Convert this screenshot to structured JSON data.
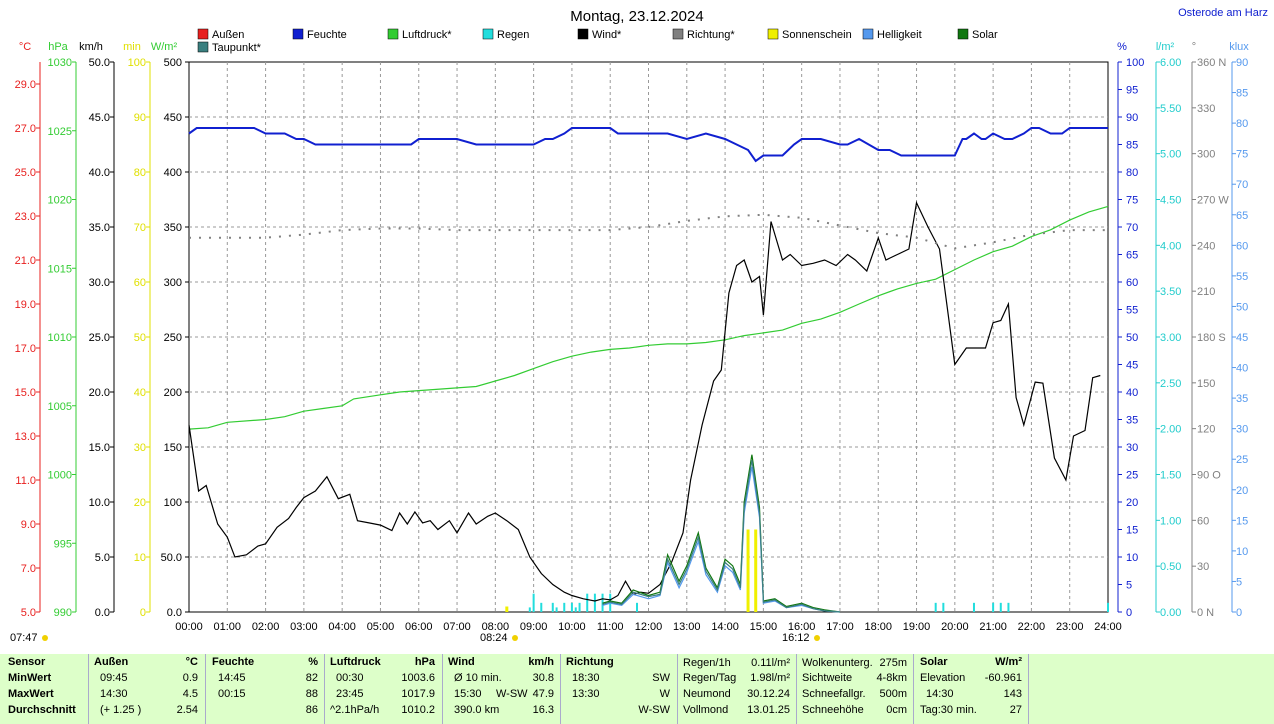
{
  "title": "Montag, 23.12.2024",
  "location": "Osterode am Harz",
  "left_units": [
    "°C",
    "hPa",
    "km/h",
    "min",
    "W/m²"
  ],
  "right_units": [
    "%",
    "l/m²",
    "°",
    "klux"
  ],
  "legend": [
    {
      "label": "Außen",
      "color": "#e8201f"
    },
    {
      "label": "Taupunkt*",
      "color": "#3a7f7f"
    },
    {
      "label": "Feuchte",
      "color": "#1020d0"
    },
    {
      "label": "Luftdruck*",
      "color": "#33cc33"
    },
    {
      "label": "Regen",
      "color": "#22dddd"
    },
    {
      "label": "Wind*",
      "color": "#000000"
    },
    {
      "label": "Richtung*",
      "color": "#808080"
    },
    {
      "label": "Sonnenschein",
      "color": "#f0f000"
    },
    {
      "label": "Helligkeit",
      "color": "#5599ee"
    },
    {
      "label": "Solar",
      "color": "#117711"
    }
  ],
  "sun": {
    "rise": "07:47",
    "noon": "08:24",
    "set": "16:12"
  },
  "chart_data": {
    "type": "line",
    "x_ticks": [
      "00:00",
      "01:00",
      "02:00",
      "03:00",
      "04:00",
      "05:00",
      "06:00",
      "07:00",
      "08:00",
      "09:00",
      "10:00",
      "11:00",
      "12:00",
      "13:00",
      "14:00",
      "15:00",
      "16:00",
      "17:00",
      "18:00",
      "19:00",
      "20:00",
      "21:00",
      "22:00",
      "23:00",
      "24:00"
    ],
    "axes": {
      "temp_c": {
        "ticks": [
          "5.0",
          "7.0",
          "9.0",
          "11.0",
          "13.0",
          "15.0",
          "17.0",
          "19.0",
          "21.0",
          "23.0",
          "25.0",
          "27.0",
          "29.0"
        ],
        "color": "#e8201f",
        "range": [
          5,
          30
        ]
      },
      "pressure_hpa": {
        "ticks": [
          "990",
          "995",
          "1000",
          "1005",
          "1010",
          "1015",
          "1020",
          "1025",
          "1030"
        ],
        "color": "#33cc33",
        "range": [
          990,
          1030
        ]
      },
      "wind_kmh": {
        "ticks": [
          "0.0",
          "5.0",
          "10.0",
          "15.0",
          "20.0",
          "25.0",
          "30.0",
          "35.0",
          "40.0",
          "45.0",
          "50.0"
        ],
        "color": "#000000",
        "range": [
          0,
          50
        ]
      },
      "sunshine_min": {
        "ticks": [
          "0",
          "10",
          "20",
          "30",
          "40",
          "50",
          "60",
          "70",
          "80",
          "90",
          "100"
        ],
        "color": "#e0e000",
        "range": [
          0,
          100
        ]
      },
      "solar_wm2": {
        "ticks": [
          "0.0",
          "50.0",
          "100",
          "150",
          "200",
          "250",
          "300",
          "350",
          "400",
          "450",
          "500"
        ],
        "color": "#000000",
        "range": [
          0,
          500
        ]
      },
      "humidity_pct": {
        "ticks": [
          "0",
          "5",
          "10",
          "15",
          "20",
          "25",
          "30",
          "35",
          "40",
          "45",
          "50",
          "55",
          "60",
          "65",
          "70",
          "75",
          "80",
          "85",
          "90",
          "95",
          "100"
        ],
        "color": "#1020d0",
        "range": [
          0,
          100
        ]
      },
      "rain_lm2": {
        "ticks": [
          "0.00",
          "0.50",
          "1.00",
          "1.50",
          "2.00",
          "2.50",
          "3.00",
          "3.50",
          "4.00",
          "4.50",
          "5.00",
          "5.50",
          "6.00"
        ],
        "color": "#22cccc",
        "range": [
          0,
          6
        ]
      },
      "direction_deg": {
        "ticks": [
          "0 N",
          "30",
          "60",
          "90 O",
          "120",
          "150",
          "180 S",
          "210",
          "240",
          "270 W",
          "300",
          "330",
          "360 N"
        ],
        "color": "#808080",
        "range": [
          0,
          360
        ]
      },
      "lux_klux": {
        "ticks": [
          "0",
          "5",
          "10",
          "15",
          "20",
          "25",
          "30",
          "35",
          "40",
          "45",
          "50",
          "55",
          "60",
          "65",
          "70",
          "75",
          "80",
          "85",
          "90"
        ],
        "color": "#5599ee",
        "range": [
          0,
          90
        ]
      }
    },
    "series": [
      {
        "name": "Feuchte",
        "axis": "humidity_pct",
        "color": "#1020d0",
        "x": [
          0,
          0.2,
          0.5,
          1,
          1.7,
          2,
          2.5,
          2.8,
          3,
          3.3,
          3.6,
          4,
          5,
          5.8,
          6,
          7,
          7.5,
          8,
          8.5,
          9,
          9.3,
          9.5,
          9.8,
          10,
          10.5,
          11,
          11.2,
          11.5,
          12,
          12.5,
          13,
          13.5,
          14,
          14.3,
          14.6,
          14.8,
          15,
          15.5,
          15.8,
          16,
          16.5,
          17,
          17.2,
          17.5,
          18,
          18.3,
          18.6,
          19,
          19.5,
          20,
          20.2,
          20.3,
          20.5,
          20.7,
          20.8,
          21,
          21.3,
          21.5,
          21.8,
          22,
          22.2,
          22.5,
          22.8,
          23,
          23.5,
          24
        ],
        "y": [
          87,
          88,
          88,
          88,
          88,
          87,
          87,
          86,
          86,
          85,
          85,
          85,
          85,
          85,
          86,
          86,
          85,
          85,
          85,
          85,
          86,
          86,
          87,
          88,
          88,
          88,
          87,
          87,
          87,
          87,
          86,
          87,
          86,
          85,
          84,
          82,
          83,
          83,
          85,
          86,
          86,
          85,
          85,
          86,
          84,
          84,
          83,
          83,
          83,
          83,
          86,
          86,
          87,
          86,
          86,
          87,
          86,
          86,
          87,
          88,
          88,
          87,
          87,
          88,
          88,
          88
        ]
      },
      {
        "name": "Luftdruck",
        "axis": "pressure_hpa",
        "color": "#33cc33",
        "x": [
          0,
          0.5,
          1,
          2,
          2.5,
          3,
          3.5,
          4,
          4.3,
          5,
          5.5,
          6,
          7,
          7.5,
          8,
          8.5,
          9,
          9.5,
          10,
          10.5,
          11,
          11.5,
          12,
          12.5,
          13,
          13.5,
          14,
          14.5,
          15,
          15.5,
          16,
          16.5,
          17,
          17.5,
          18,
          18.5,
          19,
          19.5,
          20,
          20.5,
          21,
          21.5,
          22,
          22.5,
          23,
          23.5,
          24
        ],
        "y": [
          1003.3,
          1003.4,
          1003.8,
          1004.0,
          1004.2,
          1004.6,
          1004.8,
          1005.0,
          1005.5,
          1005.8,
          1006.0,
          1006.1,
          1006.3,
          1006.4,
          1006.8,
          1007.2,
          1007.7,
          1008.2,
          1008.6,
          1008.9,
          1009.1,
          1009.2,
          1009.4,
          1009.5,
          1009.5,
          1009.6,
          1009.8,
          1010.1,
          1010.3,
          1010.5,
          1011.0,
          1011.3,
          1011.8,
          1012.4,
          1013.0,
          1013.5,
          1013.9,
          1014.2,
          1014.9,
          1015.6,
          1016.2,
          1016.6,
          1017.3,
          1017.8,
          1018.5,
          1019.1,
          1019.5
        ]
      },
      {
        "name": "Wind",
        "axis": "wind_kmh",
        "color": "#000000",
        "x": [
          0,
          0.25,
          0.45,
          0.75,
          1,
          1.2,
          1.5,
          1.8,
          2,
          2.3,
          2.6,
          2.8,
          3,
          3.3,
          3.6,
          3.9,
          4.2,
          4.4,
          4.7,
          5,
          5.3,
          5.5,
          5.7,
          5.9,
          6.1,
          6.3,
          6.5,
          6.8,
          7,
          7.3,
          7.5,
          7.8,
          8,
          8.3,
          8.6,
          8.9,
          9.2,
          9.5,
          9.8,
          10,
          10.3,
          10.6,
          10.8,
          11,
          11.2,
          11.4,
          11.6,
          11.8,
          12,
          12.3,
          12.6,
          12.9,
          13.1,
          13.4,
          13.7,
          13.9,
          14.1,
          14.3,
          14.5,
          14.7,
          14.9,
          15.0,
          15.2,
          15.5,
          15.7,
          16,
          16.3,
          16.6,
          16.9,
          17.2,
          17.4,
          17.7,
          18,
          18.2,
          18.5,
          18.8,
          19,
          19.3,
          19.6,
          20,
          20.3,
          20.5,
          20.8,
          21,
          21.2,
          21.4,
          21.6,
          21.8,
          22.1,
          22.3,
          22.6,
          22.9,
          23.1,
          23.4,
          23.6,
          23.8
        ],
        "y": [
          17,
          11,
          11.5,
          8,
          6.8,
          5,
          5.2,
          6,
          6.2,
          7.7,
          8.5,
          9.5,
          10.4,
          11,
          12.3,
          10.3,
          10.7,
          8.3,
          8.1,
          7.9,
          7.4,
          9,
          8,
          9.1,
          8.1,
          8.3,
          7.5,
          8.3,
          7.2,
          9,
          8,
          8.7,
          9,
          8.3,
          7.5,
          5,
          3.5,
          2.5,
          1.8,
          1.5,
          1.2,
          1.0,
          1.2,
          1.1,
          1.5,
          2.8,
          1.6,
          1.8,
          1.7,
          2.5,
          4.5,
          7.2,
          12,
          17,
          21,
          22,
          29,
          31.5,
          32,
          30,
          30.5,
          27,
          35.5,
          32,
          32.5,
          31.5,
          31.7,
          32,
          31.5,
          32.5,
          32,
          31,
          34,
          32,
          32.5,
          33,
          37.2,
          35,
          33,
          22.5,
          24,
          24,
          24,
          26.3,
          26.5,
          28,
          19.5,
          17,
          20.9,
          20.8,
          14,
          12,
          16,
          16.5,
          21.3,
          21.5
        ]
      },
      {
        "name": "Richtung",
        "axis": "direction_deg",
        "color": "#808080",
        "x": [
          0,
          1,
          2,
          3,
          4,
          5,
          6,
          7,
          8,
          11,
          12,
          13,
          14,
          15,
          16,
          17,
          18,
          19,
          20,
          21,
          22,
          23,
          24
        ],
        "y": [
          245,
          245,
          245,
          247,
          250,
          251,
          251,
          250,
          250,
          250,
          252,
          256,
          259,
          260,
          258,
          253,
          248,
          245,
          238,
          242,
          247,
          250,
          250
        ]
      },
      {
        "name": "Solar",
        "axis": "solar_wm2",
        "color": "#117711",
        "x": [
          10.8,
          11,
          11.3,
          11.6,
          12,
          12.3,
          12.5,
          12.8,
          13,
          13.3,
          13.5,
          13.8,
          14,
          14.2,
          14.4,
          14.5,
          14.7,
          14.9,
          15,
          15.3,
          15.6,
          16,
          16.3,
          16.6,
          17
        ],
        "y": [
          8,
          10,
          8,
          20,
          15,
          18,
          52,
          28,
          42,
          72,
          40,
          22,
          48,
          42,
          25,
          100,
          143,
          95,
          10,
          12,
          5,
          8,
          4,
          2,
          0
        ]
      },
      {
        "name": "Helligkeit",
        "axis": "solar_wm2",
        "color": "#5599ee",
        "x": [
          10.8,
          11,
          11.3,
          11.6,
          12,
          12.3,
          12.5,
          12.8,
          13,
          13.3,
          13.5,
          13.8,
          14,
          14.2,
          14.4,
          14.5,
          14.7,
          14.9,
          15,
          15.3,
          15.6,
          16,
          16.3,
          16.6,
          17
        ],
        "y": [
          6,
          8,
          6,
          16,
          12,
          15,
          45,
          22,
          36,
          64,
          34,
          18,
          42,
          36,
          20,
          90,
          132,
          86,
          8,
          10,
          4,
          6,
          3,
          1,
          0
        ]
      },
      {
        "name": "Taupunkt",
        "axis": "solar_wm2",
        "color": "#3a7f7f",
        "x": [
          10.8,
          11,
          11.3,
          11.6,
          12,
          12.3,
          12.5,
          12.8,
          13,
          13.3,
          13.5,
          13.8,
          14,
          14.2,
          14.4,
          14.5,
          14.7,
          14.9,
          15,
          15.3,
          15.6,
          16,
          16.3,
          16.6,
          17
        ],
        "y": [
          7,
          9,
          7,
          18,
          14,
          16,
          48,
          25,
          39,
          68,
          37,
          20,
          45,
          39,
          22,
          95,
          138,
          90,
          9,
          11,
          4,
          7,
          3,
          1,
          0
        ]
      }
    ],
    "bars": [
      {
        "name": "Regen",
        "axis": "rain_lm2",
        "color": "#22dddd",
        "x": [
          8.9,
          9.0,
          9.2,
          9.5,
          9.6,
          9.8,
          10,
          10.1,
          10.2,
          10.4,
          10.6,
          10.8,
          11.0,
          11.7,
          19.5,
          19.7,
          20.5,
          21.0,
          21.2,
          21.4,
          24.0
        ],
        "y": [
          0.05,
          0.2,
          0.1,
          0.1,
          0.05,
          0.1,
          0.1,
          0.05,
          0.1,
          0.2,
          0.2,
          0.2,
          0.2,
          0.1,
          0.1,
          0.1,
          0.1,
          0.1,
          0.1,
          0.1,
          0.1
        ]
      },
      {
        "name": "Sonnenschein",
        "axis": "sunshine_min",
        "color": "#f0f000",
        "x": [
          8.3,
          14.6,
          14.8
        ],
        "y": [
          1,
          15,
          15
        ]
      }
    ]
  },
  "stats": {
    "sensor": {
      "header": "Sensor",
      "rows": [
        "MinWert",
        "MaxWert",
        "Durchschnitt"
      ]
    },
    "aussen": {
      "header": "Außen",
      "unit": "°C",
      "rows": [
        [
          "09:45",
          "0.9"
        ],
        [
          "14:30",
          "4.5"
        ],
        [
          "(+ 1.25 )",
          "2.54"
        ]
      ]
    },
    "feuchte": {
      "header": "Feuchte",
      "unit": "%",
      "rows": [
        [
          "14:45",
          "82"
        ],
        [
          "00:15",
          "88"
        ],
        [
          "",
          "86"
        ]
      ]
    },
    "luftdruck": {
      "header": "Luftdruck",
      "unit": "hPa",
      "rows": [
        [
          "00:30",
          "1003.6"
        ],
        [
          "23:45",
          "1017.9"
        ],
        [
          "^2.1hPa/h",
          "1010.2"
        ]
      ]
    },
    "wind": {
      "header": "Wind",
      "unit": "km/h",
      "rows": [
        [
          "Ø 10 min.",
          "",
          "30.8"
        ],
        [
          "15:30",
          "W-SW",
          "47.9"
        ],
        [
          "390.0 km",
          "",
          "16.3"
        ]
      ]
    },
    "richtung": {
      "header": "Richtung",
      "rows": [
        [
          "18:30",
          "SW"
        ],
        [
          "13:30",
          "W"
        ],
        [
          "",
          "W-SW"
        ]
      ]
    },
    "regen": {
      "rows": [
        [
          "Regen/1h",
          "0.11l/m²"
        ],
        [
          "Regen/Tag",
          "1.98l/m²"
        ],
        [
          "Neumond",
          "30.12.24"
        ],
        [
          "Vollmond",
          "13.01.25"
        ]
      ]
    },
    "wolken": {
      "rows": [
        [
          "Wolkenunterg.",
          "275m"
        ],
        [
          "Sichtweite",
          "4-8km"
        ],
        [
          "Schneefallgr.",
          "500m"
        ],
        [
          "Schneehöhe",
          "0cm"
        ]
      ]
    },
    "solar": {
      "header": "Solar",
      "unit": "W/m²",
      "rows": [
        [
          "Elevation",
          "-60.961"
        ],
        [
          "14:30",
          "143"
        ],
        [
          "Tag:30 min.",
          "27"
        ]
      ]
    }
  }
}
